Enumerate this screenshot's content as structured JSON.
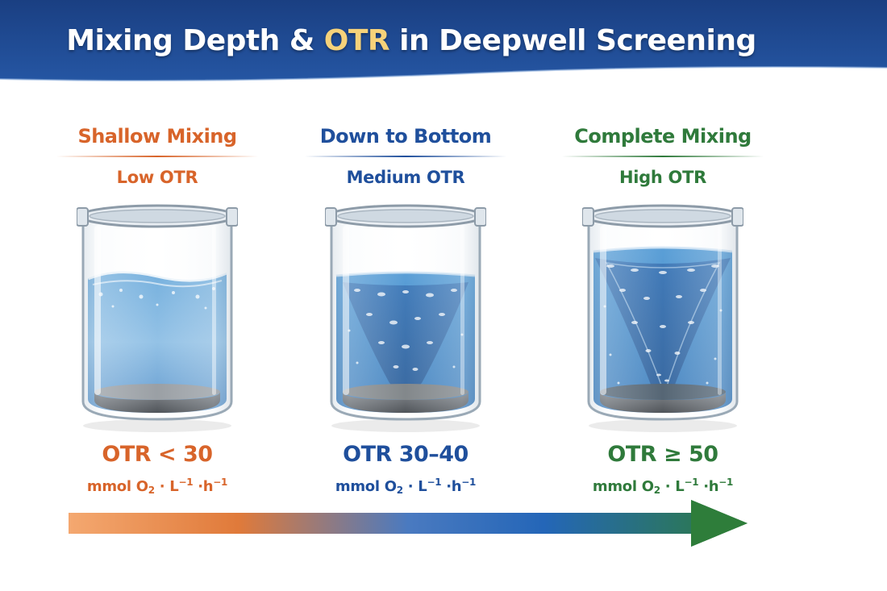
{
  "title": {
    "main": "Mixing Depth & ",
    "highlight": "OTR",
    "rest": " in Deepwell Screening"
  },
  "columns": [
    {
      "heading": "Shallow Mixing",
      "sub": "Low OTR",
      "otr": "OTR < 30",
      "unit": {
        "pre": "mmol O",
        "o_sub": "2",
        "l": " · L",
        "l_sup": "−1",
        "h": " ·h",
        "h_sup": "−1"
      },
      "color": "#d8642a",
      "mixing": "shallow"
    },
    {
      "heading": "Down to Bottom",
      "sub": "Medium OTR",
      "otr": "OTR 30–40",
      "unit": {
        "pre": "mmol O",
        "o_sub": "2",
        "l": " · L",
        "l_sup": "−1",
        "h": " ·h",
        "h_sup": "−1"
      },
      "color": "#1f4f9c",
      "mixing": "to-bottom"
    },
    {
      "heading": "Complete Mixing",
      "sub": "High OTR",
      "otr": "OTR ≥ 50",
      "unit": {
        "pre": "mmol O",
        "o_sub": "2",
        "l": " · L",
        "l_sup": "−1",
        "h": " ·h",
        "h_sup": "−1"
      },
      "color": "#2f7a3b",
      "mixing": "complete"
    }
  ],
  "colors": {
    "banner": "#1e4589",
    "title_highlight": "#f6d27a",
    "arrow_start": "#f4a870",
    "arrow_end": "#2e7d3a"
  }
}
